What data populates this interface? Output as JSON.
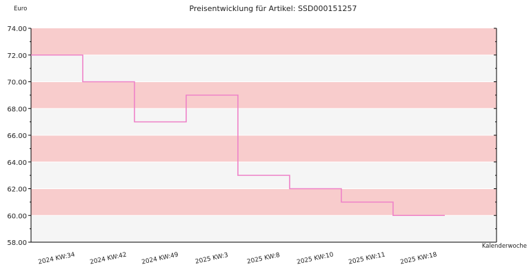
{
  "chart_data": {
    "type": "line",
    "step": true,
    "title": "Preisentwicklung für Artikel: SSD000151257",
    "ylabel": "Euro",
    "xlabel": "Kalenderwoche",
    "ylim": [
      58,
      74
    ],
    "y_ticks": [
      "58.00",
      "60.00",
      "62.00",
      "64.00",
      "66.00",
      "68.00",
      "70.00",
      "72.00",
      "74.00"
    ],
    "categories": [
      "2024 KW:34",
      "2024 KW:42",
      "2024 KW:49",
      "2025 KW:3",
      "2025 KW:8",
      "2025 KW:10",
      "2025 KW:11",
      "2025 KW:18"
    ],
    "series": [
      {
        "values": [
          72,
          70,
          67,
          69,
          63,
          62,
          61,
          60
        ]
      }
    ],
    "grid": true,
    "legend": "none",
    "colors": {
      "line": "#ee82c8",
      "band_pink": "#f8cccc",
      "band_light": "#f5f5f5",
      "grid": "#ffffff",
      "axis": "#000000"
    }
  }
}
